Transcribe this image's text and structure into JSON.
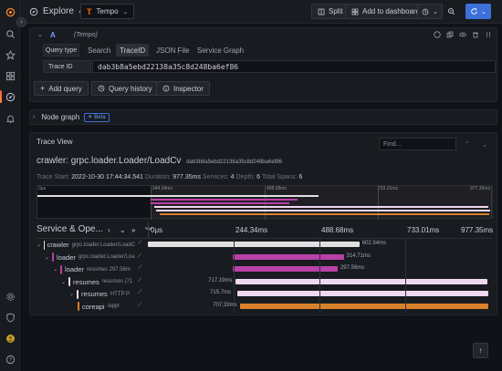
{
  "topbar": {
    "title": "Explore",
    "datasource": "Tempo",
    "split_label": "Split",
    "add_dashboard_label": "Add to dashboard"
  },
  "query_row": {
    "ref_id": "A",
    "datasource_hint": "(Tempo)",
    "query_type_label": "Query type",
    "tabs": [
      "Search",
      "TraceID",
      "JSON File",
      "Service Graph"
    ],
    "selected_tab": "TraceID",
    "trace_id_label": "Trace ID",
    "trace_id_value": "dab3b8a5ebd22138a35c8d248ba6ef86"
  },
  "actions": {
    "add_query": "Add query",
    "query_history": "Query history",
    "inspector": "Inspector"
  },
  "node_graph": {
    "label": "Node graph",
    "badge": "Beta"
  },
  "trace_view": {
    "title": "Trace View",
    "find_placeholder": "Find...",
    "trace_name": "crawler: grpc.loader.Loader/LoadCv",
    "trace_id": "dab3b8a5ebd22138a35c8d248ba6ef86",
    "stats": {
      "start_label": "Trace Start:",
      "start_value": "2022-10-30 17:44:34.541",
      "duration_label": "Duration:",
      "duration_value": "977.35ms",
      "services_label": "Services:",
      "services_value": "4",
      "depth_label": "Depth:",
      "depth_value": "6",
      "spans_label": "Total Spans:",
      "spans_value": "6"
    },
    "minimap_ticks": [
      "0μs",
      "244.34ms",
      "488.68ms",
      "733.01ms",
      "977.35ms"
    ],
    "header": {
      "service_op_label": "Service & Ope...",
      "ticks": [
        "0μs",
        "244.34ms",
        "488.68ms",
        "733.01ms",
        "977.35ms"
      ]
    }
  },
  "spans": [
    {
      "service": "crawler",
      "operation": "grpc.loader.Loader/LoadC",
      "color": "#e0e0e0",
      "depth": 0,
      "start_ms": 0,
      "duration_ms": 602.54,
      "duration": "602.54ms"
    },
    {
      "service": "loader",
      "operation": "grpc.loader.Loader/Loa",
      "color": "#b940a8",
      "depth": 1,
      "start_ms": 243,
      "duration_ms": 314.71,
      "duration": "314.71ms"
    },
    {
      "service": "loader",
      "operation": "resumes 297.56m",
      "color": "#b940a8",
      "depth": 2,
      "start_ms": 243,
      "duration_ms": 297.56,
      "duration": "297.56ms"
    },
    {
      "service": "resumes",
      "operation": "resumes (71",
      "color": "#f0d8f0",
      "depth": 3,
      "start_ms": 250,
      "duration_ms": 717.19,
      "duration": "717.19ms"
    },
    {
      "service": "resumes",
      "operation": "HTTP P",
      "color": "#f0d8f0",
      "depth": 4,
      "start_ms": 255,
      "duration_ms": 715.7,
      "duration": "715.7ms"
    },
    {
      "service": "coreapi",
      "operation": "/appl",
      "color": "#d9822b",
      "depth": 5,
      "start_ms": 263,
      "duration_ms": 707.33,
      "duration": "707.33ms"
    }
  ],
  "chart_scale": {
    "total_ms": 977.35
  },
  "colors": {
    "accent": "#3d71d9",
    "crawler": "#e0e0e0",
    "loader": "#b940a8",
    "resumes": "#f0d8f0",
    "coreapi": "#d9822b"
  }
}
